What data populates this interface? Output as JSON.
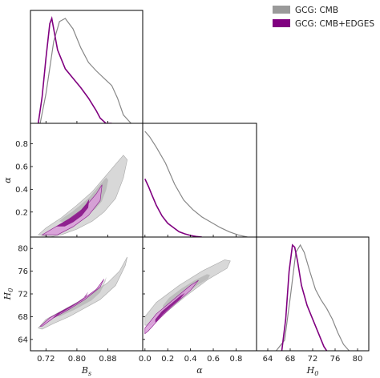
{
  "chart_data": {
    "type": "corner",
    "parameters": [
      {
        "key": "Bs",
        "symbol": "B",
        "sub": "s",
        "range": [
          0.68,
          0.97
        ],
        "ticks": [
          0.72,
          0.8,
          0.88
        ],
        "tick_labels": [
          "0.72",
          "0.80",
          "0.88"
        ]
      },
      {
        "key": "alpha",
        "symbol": "α",
        "sub": "",
        "range": [
          -0.02,
          0.98
        ],
        "ticks": [
          0.2,
          0.4,
          0.6,
          0.8
        ],
        "tick_labels": [
          "0.2",
          "0.4",
          "0.6",
          "0.8"
        ],
        "xticks": [
          0.0,
          0.2,
          0.4,
          0.6,
          0.8
        ],
        "xtick_labels": [
          "0.0",
          "0.2",
          "0.4",
          "0.6",
          "0.8"
        ]
      },
      {
        "key": "H0",
        "symbol": "H",
        "sub": "0",
        "range": [
          62.0,
          82.0
        ],
        "ticks": [
          64,
          68,
          72,
          76,
          80
        ],
        "tick_labels": [
          "64",
          "68",
          "72",
          "76",
          "80"
        ]
      }
    ],
    "series": [
      {
        "name": "GCG: CMB",
        "color": "#888888",
        "fill_outer": "#d4d4d4",
        "fill_inner": "#a8a8a8",
        "marginals": {
          "Bs": {
            "x": [
              0.705,
              0.72,
              0.74,
              0.755,
              0.77,
              0.79,
              0.81,
              0.83,
              0.85,
              0.87,
              0.89,
              0.905,
              0.92,
              0.94
            ],
            "y": [
              0.0,
              0.28,
              0.78,
              0.97,
              1.0,
              0.9,
              0.72,
              0.58,
              0.5,
              0.43,
              0.36,
              0.24,
              0.08,
              0.0
            ]
          },
          "alpha": {
            "x": [
              0.0,
              0.04,
              0.1,
              0.18,
              0.26,
              0.34,
              0.42,
              0.5,
              0.58,
              0.66,
              0.74,
              0.82,
              0.9
            ],
            "y": [
              1.0,
              0.95,
              0.85,
              0.7,
              0.5,
              0.35,
              0.26,
              0.19,
              0.14,
              0.09,
              0.05,
              0.02,
              0.0
            ]
          },
          "H0": {
            "x": [
              65.5,
              67.0,
              68.0,
              69.0,
              69.8,
              70.5,
              71.5,
              72.5,
              73.5,
              74.5,
              75.5,
              76.5,
              77.5,
              78.5
            ],
            "y": [
              0.0,
              0.1,
              0.5,
              0.93,
              1.0,
              0.93,
              0.75,
              0.58,
              0.48,
              0.4,
              0.3,
              0.17,
              0.06,
              0.0
            ]
          }
        },
        "contours": {
          "Bs_alpha": {
            "x": [
              0.7,
              0.72,
              0.76,
              0.8,
              0.84,
              0.87,
              0.9,
              0.92,
              0.93,
              0.92,
              0.9,
              0.87,
              0.84,
              0.8,
              0.76,
              0.73,
              0.7
            ],
            "y": [
              0.0,
              0.06,
              0.15,
              0.26,
              0.38,
              0.5,
              0.62,
              0.7,
              0.66,
              0.5,
              0.32,
              0.2,
              0.12,
              0.05,
              0.0,
              -0.02,
              0.0
            ]
          },
          "Bs_H0": {
            "x": [
              0.7,
              0.72,
              0.76,
              0.8,
              0.84,
              0.88,
              0.91,
              0.93,
              0.925,
              0.9,
              0.86,
              0.82,
              0.78,
              0.74,
              0.71,
              0.7
            ],
            "y": [
              66.0,
              67.5,
              69.0,
              70.5,
              72.0,
              74.0,
              76.0,
              78.5,
              77.0,
              73.5,
              71.0,
              69.5,
              68.0,
              66.8,
              65.8,
              66.0
            ]
          },
          "alpha_H0": {
            "x": [
              0.0,
              0.1,
              0.3,
              0.5,
              0.7,
              0.75,
              0.72,
              0.55,
              0.35,
              0.2,
              0.05,
              0.0
            ],
            "y": [
              68.0,
              70.5,
              73.5,
              76.0,
              78.0,
              77.8,
              76.5,
              74.5,
              71.5,
              69.0,
              66.5,
              66.5
            ]
          }
        }
      },
      {
        "name": "GCG: CMB+EDGES",
        "color": "#800080",
        "fill_outer": "#d99bd9",
        "fill_inner": "#8b1a8b",
        "marginals": {
          "Bs": {
            "x": [
              0.7,
              0.71,
              0.72,
              0.73,
              0.735,
              0.74,
              0.75,
              0.77,
              0.79,
              0.81,
              0.83,
              0.85,
              0.86,
              0.875,
              0.89
            ],
            "y": [
              0.0,
              0.25,
              0.62,
              0.95,
              1.0,
              0.9,
              0.7,
              0.52,
              0.43,
              0.34,
              0.24,
              0.12,
              0.05,
              0.0,
              0.0
            ]
          },
          "alpha": {
            "x": [
              0.0,
              0.03,
              0.06,
              0.1,
              0.15,
              0.2,
              0.25,
              0.3,
              0.35,
              0.4,
              0.45,
              0.5
            ],
            "y": [
              0.55,
              0.48,
              0.4,
              0.3,
              0.2,
              0.13,
              0.09,
              0.05,
              0.03,
              0.015,
              0.005,
              0.0
            ]
          },
          "H0": {
            "x": [
              66.5,
              67.2,
              67.8,
              68.4,
              68.8,
              69.3,
              70.0,
              71.0,
              72.0,
              73.0,
              74.0,
              74.5
            ],
            "y": [
              0.0,
              0.3,
              0.75,
              1.0,
              0.98,
              0.85,
              0.62,
              0.43,
              0.3,
              0.17,
              0.04,
              0.0
            ]
          }
        },
        "contours": {
          "Bs_alpha": {
            "x": [
              0.71,
              0.74,
              0.78,
              0.82,
              0.85,
              0.865,
              0.86,
              0.83,
              0.79,
              0.75,
              0.71
            ],
            "y": [
              0.0,
              0.06,
              0.14,
              0.24,
              0.36,
              0.44,
              0.3,
              0.17,
              0.07,
              0.0,
              0.0
            ]
          },
          "Bs_H0": {
            "x": [
              0.705,
              0.73,
              0.77,
              0.81,
              0.85,
              0.87,
              0.86,
              0.82,
              0.78,
              0.74,
              0.71,
              0.705
            ],
            "y": [
              66.3,
              67.8,
              69.3,
              70.8,
              72.8,
              74.6,
              73.2,
              71.0,
              69.3,
              67.8,
              66.3,
              66.3
            ]
          },
          "alpha_H0": {
            "x": [
              0.0,
              0.1,
              0.25,
              0.4,
              0.47,
              0.4,
              0.25,
              0.12,
              0.03,
              0.0
            ],
            "y": [
              66.0,
              68.5,
              71.0,
              73.5,
              74.4,
              72.6,
              70.0,
              67.5,
              65.5,
              65.0
            ]
          }
        }
      }
    ],
    "legend_placement": "top-right",
    "grid": false
  }
}
